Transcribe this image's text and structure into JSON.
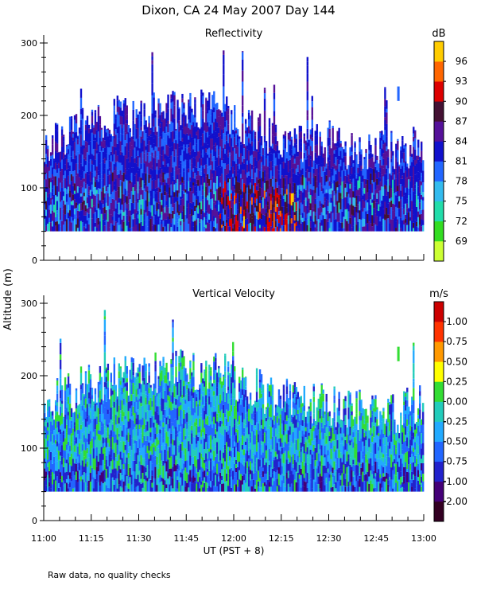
{
  "page": {
    "title": "Dixon, CA 24 May 2007  Day 144",
    "y_label": "Altitude (m)",
    "x_label": "UT  (PST + 8)",
    "footer": "Raw data, no quality checks"
  },
  "chart_data": [
    {
      "type": "heatmap",
      "title": "Reflectivity",
      "colorbar_unit": "dB",
      "colorbar_ticks": [
        "69",
        "72",
        "75",
        "78",
        "81",
        "84",
        "87",
        "90",
        "93",
        "96"
      ],
      "colorbar_colors": [
        "#ccff33",
        "#33dd22",
        "#22ddaa",
        "#33bbee",
        "#2266ff",
        "#1111cc",
        "#551199",
        "#441133",
        "#dd0000",
        "#ff6600",
        "#ffcc00"
      ],
      "x_ticks": [
        "11:00",
        "11:15",
        "11:30",
        "11:45",
        "12:00",
        "12:15",
        "12:30",
        "12:45",
        "13:00"
      ],
      "x_range_hours": [
        11.0,
        13.0
      ],
      "y_ticks": [
        "0",
        "100",
        "200",
        "300"
      ],
      "ylim": [
        0,
        300
      ],
      "data_floor_m": 40,
      "echo_top_m": [
        160,
        175,
        190,
        200,
        200,
        205,
        210,
        210,
        195,
        180,
        170,
        165,
        160,
        155,
        150,
        150,
        160
      ],
      "isolated_echo": {
        "time": "12:52",
        "altitude_m": [
          220,
          240
        ]
      }
    },
    {
      "type": "heatmap",
      "title": "Vertical Velocity",
      "colorbar_unit": "m/s",
      "colorbar_ticks": [
        "-2.00",
        "-1.00",
        "-0.75",
        "-0.50",
        "-0.25",
        "0.00",
        "0.25",
        "0.50",
        "0.75",
        "1.00"
      ],
      "colorbar_colors": [
        "#330022",
        "#440077",
        "#2222cc",
        "#2266ff",
        "#22aaff",
        "#22ccbb",
        "#33dd33",
        "#ffff00",
        "#ff9900",
        "#ff3300",
        "#cc0000"
      ],
      "x_ticks": [
        "11:00",
        "11:15",
        "11:30",
        "11:45",
        "12:00",
        "12:15",
        "12:30",
        "12:45",
        "13:00"
      ],
      "x_range_hours": [
        11.0,
        13.0
      ],
      "y_ticks": [
        "0",
        "100",
        "200",
        "300"
      ],
      "ylim": [
        0,
        300
      ],
      "data_floor_m": 40,
      "echo_top_m": [
        160,
        175,
        190,
        200,
        200,
        205,
        210,
        210,
        195,
        180,
        170,
        165,
        160,
        155,
        150,
        150,
        160
      ],
      "isolated_echo": {
        "time": "12:52",
        "altitude_m": [
          220,
          240
        ]
      }
    }
  ]
}
